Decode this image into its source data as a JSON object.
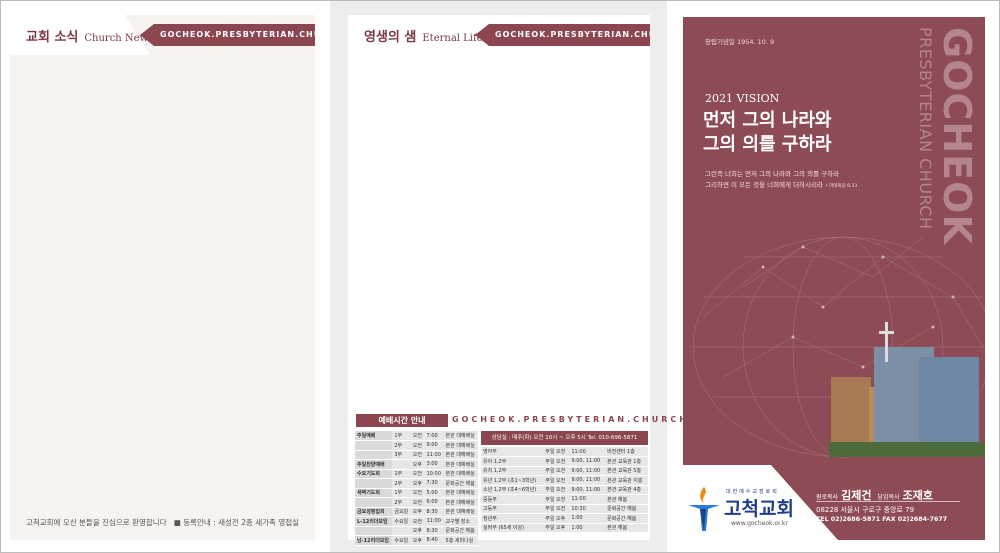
{
  "colors": {
    "brand": "#8b4650",
    "cover": "#8d4b55",
    "logo_blue": "#1f3d8a"
  },
  "left": {
    "title": "교회 소식",
    "title_en": "Church News",
    "url": "GOCHEOK.PRESBYTERIAN.CHURCH",
    "welcome": "고척교회에 오신 분들을 진심으로 환영합니다",
    "registration": "■ 등록안내 : 새성전 2층 새가족 영접실"
  },
  "middle": {
    "title": "영생의 샘",
    "title_en": "Eternal Life",
    "url": "GOCHEOK.PRESBYTERIAN.CHURCH",
    "schedule_title": "예배시간 안내",
    "schedule_url": "GOCHEOK.PRESBYTERIAN.CHURCH",
    "worship": [
      [
        "주일예배",
        "1부",
        "오전",
        "7:00",
        "본관 대예배실"
      ],
      [
        "",
        "2부",
        "오전",
        "9:00",
        "본관 대예배실"
      ],
      [
        "",
        "3부",
        "오전",
        "11:00",
        "본관 대예배실"
      ],
      [
        "주일찬양예배",
        "",
        "오후",
        "3:00",
        "본관 대예배실"
      ],
      [
        "수요기도회",
        "1부",
        "오전",
        "10:00",
        "본관 대예배실"
      ],
      [
        "",
        "2부",
        "오후",
        "7:30",
        "문화공간 해봄"
      ],
      [
        "새벽기도회",
        "1부",
        "오전",
        "5:00",
        "본관 대예배실"
      ],
      [
        "",
        "2부",
        "오전",
        "6:00",
        "본관 대예배실"
      ],
      [
        "금요성령집회",
        "금요일",
        "오후",
        "8:30",
        "본관 대예배실"
      ],
      [
        "L-12리더모임",
        "수요일",
        "오전",
        "11:00",
        "교구별 장소"
      ],
      [
        "",
        "",
        "오후",
        "8:30",
        "문화공간 해봄"
      ],
      [
        "남-12리더모임",
        "수요일",
        "오후",
        "8:40",
        "5층 세미나실"
      ]
    ],
    "counsel": "상담실 : 매주(화) 오전 10시 ~ 오후 5시  Tel. 010-696-5871",
    "education": [
      [
        "영아부",
        "주일 오전",
        "11:00",
        "비전센터 1층"
      ],
      [
        "유아 1,2부",
        "주일 오전",
        "9:00, 11:00",
        "본관 교육관 1층"
      ],
      [
        "유치 1,2부",
        "주일 오전",
        "9:00, 11:00",
        "본관 교육관 5층"
      ],
      [
        "유년 1,2부 (초1~3학년)",
        "주일 오전",
        "9:00, 11:00",
        "본관 교육관 지층"
      ],
      [
        "소년 1,2부 (초4~6학년)",
        "주일 오전",
        "9:00, 11:00",
        "본관 교육관 4층"
      ],
      [
        "중등부",
        "주일 오전",
        "11:00",
        "본관 해봄"
      ],
      [
        "고등부",
        "주일 오전",
        "10:30",
        "문화공간 해봄"
      ],
      [
        "청년부",
        "주일 오후",
        "1:00",
        "문화공간 해봄"
      ],
      [
        "실버부 (65세 이상)",
        "주일 오후",
        "1:00",
        "본관 해봄"
      ]
    ]
  },
  "cover": {
    "founded": "창립기념일  1954. 10. 9",
    "vision": "2021 VISION",
    "headline": [
      "먼저 그의 나라와",
      "그의 의를 구하라"
    ],
    "verse": [
      "그런즉 너희는 먼저 그의 나라와 그의 의를 구하라",
      "그리하면 이 모든 것을 너희에게 더하시리라"
    ],
    "verse_ref": "• 마태복음 6:33",
    "vertical_big": "GOCHEOK",
    "vertical_small": "PRESBYTERIAN CHURCH",
    "pastor1_role": "원로목사",
    "pastor1_name": "김제건",
    "pastor2_role": "담임목사",
    "pastor2_name": "조재호",
    "address": "08228 서울시 구로구 중앙로 79",
    "tel": "TEL 02)2686-5871 FAX 02)2684-7677",
    "logo_small": "대한예수교장로회",
    "logo_name": "고척교회",
    "logo_url": "www.gocheok.or.kr"
  }
}
